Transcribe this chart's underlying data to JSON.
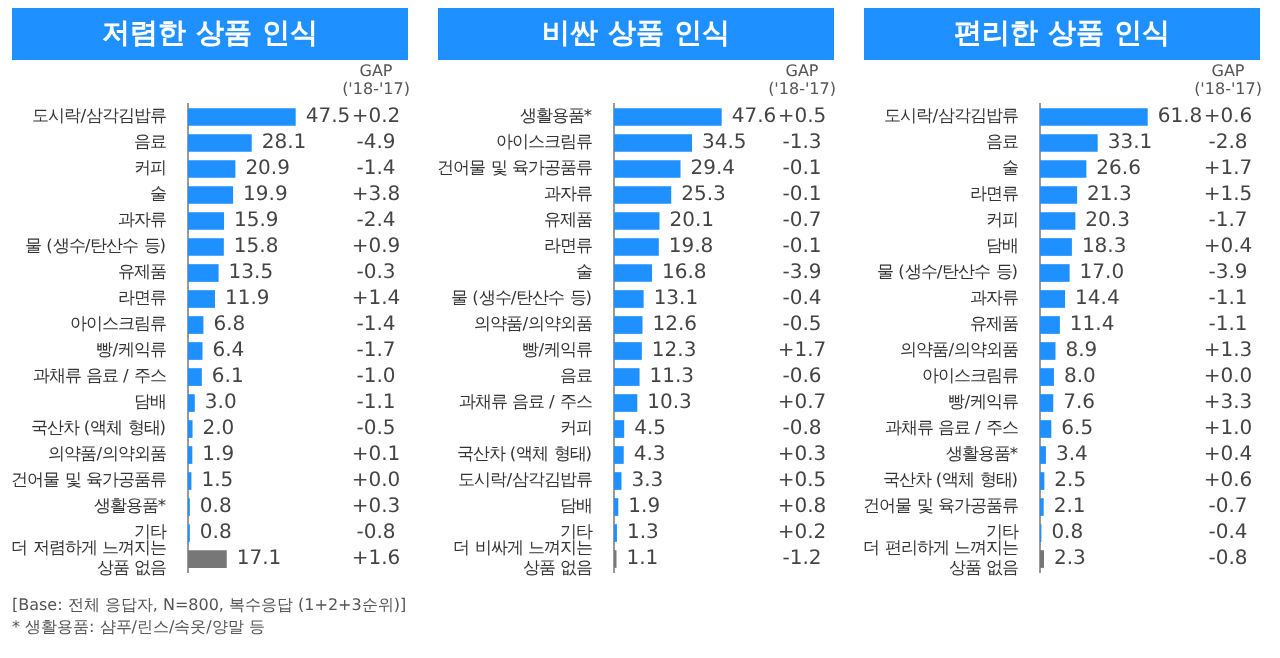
{
  "chart_data": [
    {
      "type": "bar",
      "orientation": "horizontal",
      "title": "저렴한 상품 인식",
      "value_labels": [
        "47.5",
        "28.1",
        "20.9",
        "19.9",
        "15.9",
        "15.8",
        "13.5",
        "11.9",
        "6.8",
        "6.4",
        "6.1",
        "3.0",
        "2.0",
        "1.9",
        "1.5",
        "0.8",
        "0.8",
        "17.1"
      ],
      "categories": [
        "도시락/삼각김밥류",
        "음료",
        "커피",
        "술",
        "과자류",
        "물 (생수/탄산수 등)",
        "유제품",
        "라면류",
        "아이스크림류",
        "빵/케익류",
        "과채류 음료 / 주스",
        "담배",
        "국산차 (액체 형태)",
        "의약품/의약외품",
        "건어물 및 육가공품류",
        "생활용품*",
        "기타",
        "더 저렴하게 느껴지는 상품 없음"
      ],
      "values": [
        47.5,
        28.1,
        20.9,
        19.9,
        15.9,
        15.8,
        13.5,
        11.9,
        6.8,
        6.4,
        6.1,
        3.0,
        2.0,
        1.9,
        1.5,
        0.8,
        0.8,
        17.1
      ],
      "colors": [
        "#1e90ff",
        "#1e90ff",
        "#1e90ff",
        "#1e90ff",
        "#1e90ff",
        "#1e90ff",
        "#1e90ff",
        "#1e90ff",
        "#1e90ff",
        "#1e90ff",
        "#1e90ff",
        "#1e90ff",
        "#1e90ff",
        "#1e90ff",
        "#1e90ff",
        "#1e90ff",
        "#1e90ff",
        "#777777"
      ],
      "annotations": [
        "GAP ('18-'17)",
        "+0.2",
        "-4.9",
        "-1.4",
        "+3.8",
        "-2.4",
        "+0.9",
        "-0.3",
        "+1.4",
        "-1.4",
        "-1.7",
        "-1.0",
        "-1.1",
        "-0.5",
        "+0.1",
        "+0.0",
        "+0.3",
        "-0.8",
        "+1.6",
        "[Base: 전체 응답자, N=800, 복수응답 (1+2+3순위)]",
        "* 생활용품: 샴푸/린스/속옷/양말 등"
      ]
    },
    {
      "type": "bar",
      "orientation": "horizontal",
      "title": "비싼 상품 인식",
      "data_labels": true,
      "categories": [
        "생활용품*",
        "아이스크림류",
        "건어물 및 육가공품류",
        "과자류",
        "유제품",
        "라면류",
        "술",
        "물 (생수/탄산수 등)",
        "의약품/의약외품",
        "빵/케익류",
        "음료",
        "과채류 음료 / 주스",
        "커피",
        "국산차 (액체 형태)",
        "도시락/삼각김밥류",
        "담배",
        "기타",
        "더 비싸게 느껴지는 상품 없음"
      ],
      "values": [
        47.6,
        34.5,
        29.4,
        25.3,
        20.1,
        19.8,
        16.8,
        13.1,
        12.6,
        12.3,
        11.3,
        10.3,
        4.5,
        4.3,
        3.3,
        1.9,
        1.3,
        1.1
      ],
      "colors": [
        "#1e90ff",
        "#1e90ff",
        "#1e90ff",
        "#1e90ff",
        "#1e90ff",
        "#1e90ff",
        "#1e90ff",
        "#1e90ff",
        "#1e90ff",
        "#1e90ff",
        "#1e90ff",
        "#1e90ff",
        "#1e90ff",
        "#1e90ff",
        "#1e90ff",
        "#1e90ff",
        "#1e90ff",
        "#777777"
      ],
      "annotations": [
        "GAP ('18-'17)",
        "+0.5",
        "-1.3",
        "-0.1",
        "-0.1",
        "-0.7",
        "-0.1",
        "-3.9",
        "-0.4",
        "-0.5",
        "+1.7",
        "-0.6",
        "+0.7",
        "-0.8",
        "+0.3",
        "+0.5",
        "+0.8",
        "+0.2",
        "-1.2"
      ]
    },
    {
      "type": "bar",
      "orientation": "horizontal",
      "title": "편리한 상품 인식",
      "value_labels": [
        "61.8",
        "33.1",
        "26.6",
        "21.3",
        "20.3",
        "18.3",
        "17.0",
        "14.4",
        "11.4",
        "8.9",
        "8.0",
        "7.6",
        "6.5",
        "3.4",
        "2.5",
        "2.1",
        "0.8",
        "2.3"
      ],
      "categories": [
        "도시락/삼각김밥류",
        "음료",
        "술",
        "라면류",
        "커피",
        "담배",
        "물 (생수/탄산수 등)",
        "과자류",
        "유제품",
        "의약품/의약외품",
        "아이스크림류",
        "빵/케익류",
        "과채류 음료 / 주스",
        "생활용품*",
        "국산차 (액체 형태)",
        "건어물 및 육가공품류",
        "기타",
        "더 편리하게 느껴지는 상품 없음"
      ],
      "values": [
        61.8,
        33.1,
        26.6,
        21.3,
        20.3,
        18.3,
        17.0,
        14.4,
        11.4,
        8.9,
        8.0,
        7.6,
        6.5,
        3.4,
        2.5,
        2.1,
        0.8,
        2.3
      ],
      "colors": [
        "#1e90ff",
        "#1e90ff",
        "#1e90ff",
        "#1e90ff",
        "#1e90ff",
        "#1e90ff",
        "#1e90ff",
        "#1e90ff",
        "#1e90ff",
        "#1e90ff",
        "#1e90ff",
        "#1e90ff",
        "#1e90ff",
        "#1e90ff",
        "#1e90ff",
        "#1e90ff",
        "#1e90ff",
        "#777777"
      ],
      "annotations": [
        "GAP ('18-'17)",
        "+0.6",
        "-2.8",
        "+1.7",
        "+1.5",
        "-1.7",
        "+0.4",
        "-3.9",
        "-1.1",
        "-1.1",
        "+1.3",
        "+0.0",
        "+3.3",
        "+1.0",
        "+0.4",
        "+0.6",
        "-0.7",
        "-0.4",
        "-0.8"
      ]
    }
  ]
}
